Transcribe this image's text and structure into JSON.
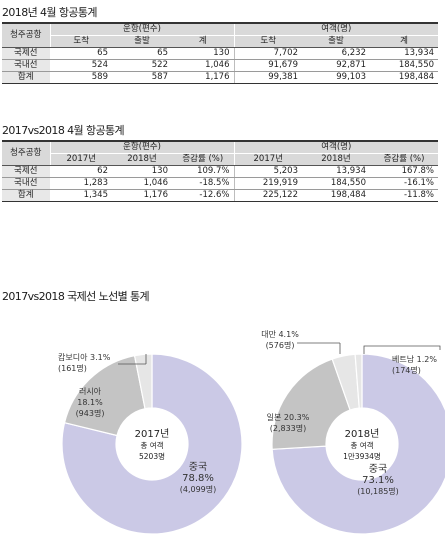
{
  "table1": {
    "title": "2018년 4월 항공통계",
    "col_airport": "청주공항",
    "group_flights": "운항(편수)",
    "group_passengers": "여객(명)",
    "sub": [
      "도착",
      "출발",
      "계",
      "도착",
      "출발",
      "계"
    ],
    "rows": [
      {
        "label": "국제선",
        "cells": [
          "65",
          "65",
          "130",
          "7,702",
          "6,232",
          "13,934"
        ]
      },
      {
        "label": "국내선",
        "cells": [
          "524",
          "522",
          "1,046",
          "91,679",
          "92,871",
          "184,550"
        ]
      },
      {
        "label": "합계",
        "cells": [
          "589",
          "587",
          "1,176",
          "99,381",
          "99,103",
          "198,484"
        ]
      }
    ]
  },
  "table2": {
    "title": "2017vs2018 4월 항공통계",
    "col_airport": "청주공항",
    "group_flights": "운항(편수)",
    "group_passengers": "여객(명)",
    "sub": [
      "2017년",
      "2018년",
      "증감률 (%)",
      "2017년",
      "2018년",
      "증감률 (%)"
    ],
    "rows": [
      {
        "label": "국제선",
        "cells": [
          "62",
          "130",
          "109.7%",
          "5,203",
          "13,934",
          "167.8%"
        ]
      },
      {
        "label": "국내선",
        "cells": [
          "1,283",
          "1,046",
          "-18.5%",
          "219,919",
          "184,550",
          "-16.1%"
        ]
      },
      {
        "label": "합계",
        "cells": [
          "1,345",
          "1,176",
          "-12.6%",
          "225,122",
          "198,484",
          "-11.8%"
        ]
      }
    ]
  },
  "pies_title": "2017vs2018 국제선 노선별 통계",
  "colors": {
    "china": "#cbc9e6",
    "second": "#c4c4c4",
    "small": "#e6e6e6",
    "border": "#ffffff"
  },
  "chart_data": [
    {
      "type": "pie",
      "center_lines": [
        "2017년",
        "총 여객",
        "5203명"
      ],
      "slices": [
        {
          "name": "중국",
          "percent_text": "78.8%",
          "count_text": "(4,099명)",
          "value": 78.8
        },
        {
          "name": "러시아",
          "percent_text": "18.1%",
          "count_text": "(943명)",
          "value": 18.1
        },
        {
          "name": "캄보디아",
          "percent_text": "3.1%",
          "count_text": "(161명)",
          "value": 3.1
        }
      ]
    },
    {
      "type": "pie",
      "center_lines": [
        "2018년",
        "총 여객",
        "1만3934명"
      ],
      "slices": [
        {
          "name": "중국",
          "percent_text": "73.1%",
          "count_text": "(10,185명)",
          "value": 73.1
        },
        {
          "name": "일본",
          "percent_text": "20.3%",
          "count_text": "(2,833명)",
          "value": 20.3
        },
        {
          "name": "대만",
          "percent_text": "4.1%",
          "count_text": "(576명)",
          "value": 4.1
        },
        {
          "name": "베트남",
          "percent_text": "1.2%",
          "count_text": "(174명)",
          "value": 1.2
        }
      ]
    }
  ]
}
